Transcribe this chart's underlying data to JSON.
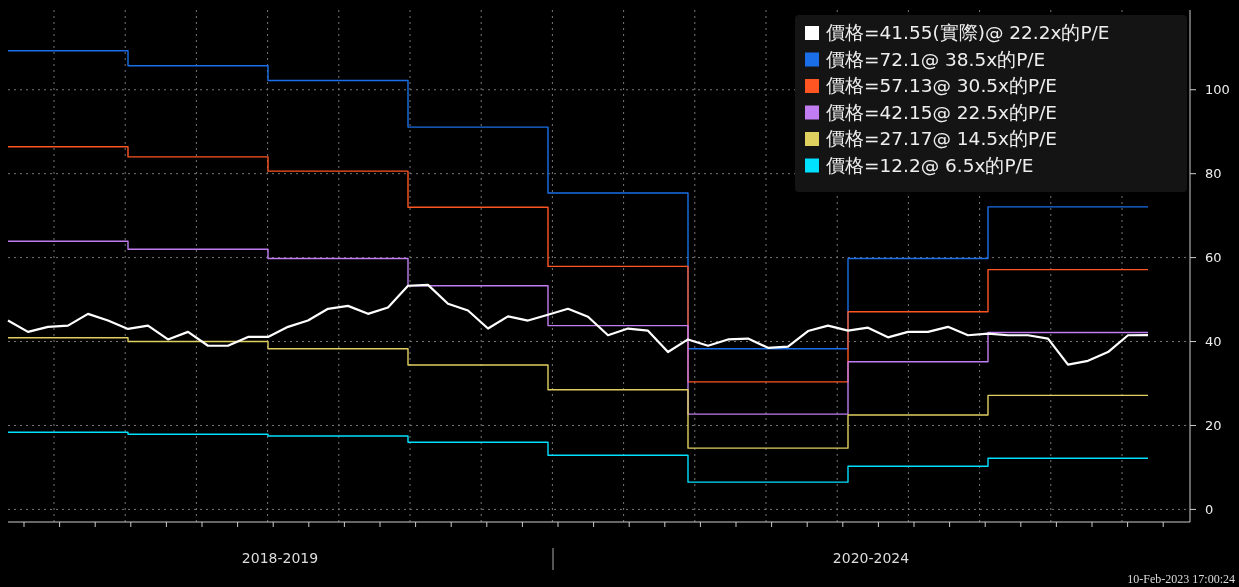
{
  "chart_data": {
    "type": "line",
    "ylim": [
      -3,
      119
    ],
    "categories": [
      null,
      null,
      null,
      null,
      null,
      null,
      null,
      null,
      null,
      null,
      null,
      null,
      null,
      null,
      null,
      null,
      null,
      null,
      null,
      null,
      null,
      null,
      null,
      null,
      null,
      null,
      null,
      null,
      null,
      null,
      null,
      null,
      null,
      null,
      null,
      null,
      null,
      null,
      null,
      null,
      null,
      null,
      null,
      null,
      null,
      null,
      null,
      null,
      null,
      null,
      null,
      null,
      null,
      null,
      null,
      null,
      null,
      null
    ],
    "yticks": [
      0,
      20,
      40,
      60,
      80,
      100
    ],
    "grid": true,
    "legend": "top right",
    "annotations": [
      "2018-2019",
      "2020-2024",
      "10-Feb-2023 17:00:24"
    ],
    "series": [
      {
        "name": "價格=41.55(實際)@ 22.2x的P/E",
        "color": "#ffffff",
        "values": [
          45.0,
          42.3,
          43.5,
          43.8,
          46.6,
          45.0,
          43.0,
          43.8,
          40.5,
          42.3,
          39.0,
          39.0,
          41.1,
          41.1,
          43.5,
          45.0,
          47.8,
          48.5,
          46.6,
          48.1,
          53.3,
          53.5,
          49.0,
          47.4,
          43.1,
          46.0,
          45.0,
          46.4,
          47.8,
          45.9,
          41.5,
          43.1,
          42.6,
          37.5,
          40.5,
          39.0,
          40.5,
          40.7,
          38.5,
          38.8,
          42.5,
          43.8,
          42.6,
          43.3,
          41.0,
          42.3,
          42.3,
          43.5,
          41.5,
          41.9,
          41.5,
          41.5,
          40.7,
          34.5,
          35.4,
          37.5,
          41.5,
          41.55
        ]
      },
      {
        "name": "價格=72.1@ 38.5x的P/E",
        "color": "#1a6fe8",
        "type": "step",
        "values": [
          109.3,
          109.3,
          109.3,
          109.3,
          109.3,
          109.3,
          105.7,
          105.7,
          105.7,
          105.7,
          105.7,
          105.7,
          105.7,
          102.2,
          102.2,
          102.2,
          102.2,
          102.2,
          102.2,
          102.2,
          91.1,
          91.1,
          91.1,
          91.1,
          91.1,
          91.1,
          91.1,
          75.4,
          75.4,
          75.4,
          75.4,
          75.4,
          75.4,
          75.4,
          38.3,
          38.3,
          38.3,
          38.3,
          38.3,
          38.3,
          38.3,
          38.3,
          59.8,
          59.8,
          59.8,
          59.8,
          59.8,
          59.8,
          59.8,
          72.1,
          72.1,
          72.1,
          72.1,
          72.1,
          72.1,
          72.1,
          72.1,
          72.1
        ]
      },
      {
        "name": "價格=57.13@ 30.5x的P/E",
        "color": "#ff5522",
        "type": "step",
        "values": [
          86.4,
          86.4,
          86.4,
          86.4,
          86.4,
          86.4,
          84.0,
          84.0,
          84.0,
          84.0,
          84.0,
          84.0,
          84.0,
          80.6,
          80.6,
          80.6,
          80.6,
          80.6,
          80.6,
          80.6,
          72.0,
          72.0,
          72.0,
          72.0,
          72.0,
          72.0,
          72.0,
          57.9,
          57.9,
          57.9,
          57.9,
          57.9,
          57.9,
          57.9,
          30.4,
          30.4,
          30.4,
          30.4,
          30.4,
          30.4,
          30.4,
          30.4,
          47.1,
          47.1,
          47.1,
          47.1,
          47.1,
          47.1,
          47.1,
          57.13,
          57.13,
          57.13,
          57.13,
          57.13,
          57.13,
          57.13,
          57.13,
          57.13
        ]
      },
      {
        "name": "價格=42.15@ 22.5x的P/E",
        "color": "#c07cf0",
        "type": "step",
        "values": [
          63.9,
          63.9,
          63.9,
          63.9,
          63.9,
          63.9,
          62.0,
          62.0,
          62.0,
          62.0,
          62.0,
          62.0,
          62.0,
          59.8,
          59.8,
          59.8,
          59.8,
          59.8,
          59.8,
          59.8,
          53.3,
          53.3,
          53.3,
          53.3,
          53.3,
          53.3,
          53.3,
          43.8,
          43.8,
          43.8,
          43.8,
          43.8,
          43.8,
          43.8,
          22.7,
          22.7,
          22.7,
          22.7,
          22.7,
          22.7,
          22.7,
          22.7,
          35.2,
          35.2,
          35.2,
          35.2,
          35.2,
          35.2,
          35.2,
          42.15,
          42.15,
          42.15,
          42.15,
          42.15,
          42.15,
          42.15,
          42.15,
          42.15
        ]
      },
      {
        "name": "價格=27.17@ 14.5x的P/E",
        "color": "#e0d060",
        "type": "step",
        "values": [
          40.9,
          40.9,
          40.9,
          40.9,
          40.9,
          40.9,
          40.0,
          40.0,
          40.0,
          40.0,
          40.0,
          40.0,
          40.0,
          38.3,
          38.3,
          38.3,
          38.3,
          38.3,
          38.3,
          38.3,
          34.4,
          34.4,
          34.4,
          34.4,
          34.4,
          34.4,
          34.4,
          28.5,
          28.5,
          28.5,
          28.5,
          28.5,
          28.5,
          28.5,
          14.6,
          14.6,
          14.6,
          14.6,
          14.6,
          14.6,
          14.6,
          14.6,
          22.5,
          22.5,
          22.5,
          22.5,
          22.5,
          22.5,
          22.5,
          27.17,
          27.17,
          27.17,
          27.17,
          27.17,
          27.17,
          27.17,
          27.17,
          27.17
        ]
      },
      {
        "name": "價格=12.2@ 6.5x的P/E",
        "color": "#00e0ff",
        "type": "step",
        "values": [
          18.4,
          18.4,
          18.4,
          18.4,
          18.4,
          18.4,
          17.9,
          17.9,
          17.9,
          17.9,
          17.9,
          17.9,
          17.9,
          17.5,
          17.5,
          17.5,
          17.5,
          17.5,
          17.5,
          17.5,
          16.0,
          16.0,
          16.0,
          16.0,
          16.0,
          16.0,
          16.0,
          12.9,
          12.9,
          12.9,
          12.9,
          12.9,
          12.9,
          12.9,
          6.5,
          6.5,
          6.5,
          6.5,
          6.5,
          6.5,
          6.5,
          6.5,
          10.3,
          10.3,
          10.3,
          10.3,
          10.3,
          10.3,
          10.3,
          12.2,
          12.2,
          12.2,
          12.2,
          12.2,
          12.2,
          12.2,
          12.2,
          12.2
        ]
      }
    ]
  }
}
